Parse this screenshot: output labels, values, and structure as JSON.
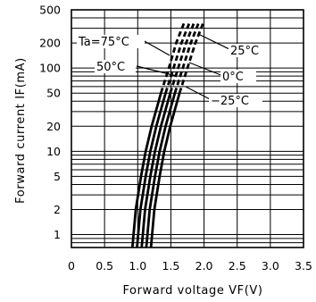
{
  "chart_data": {
    "type": "line",
    "xlabel": "Forward voltage VF(V)",
    "ylabel": "Forward current IF(mA)",
    "xlim": [
      0,
      3.5
    ],
    "ylim": [
      0.7,
      500
    ],
    "y_scale": "log",
    "grid": true,
    "x_ticks": [
      "0",
      "0.5",
      "1.0",
      "1.5",
      "2.0",
      "2.5",
      "3.0",
      "3.5"
    ],
    "y_ticks": [
      "1",
      "2",
      "5",
      "10",
      "20",
      "50",
      "100",
      "200",
      "500"
    ],
    "y_tick_values": [
      1,
      2,
      5,
      10,
      20,
      50,
      100,
      200,
      500
    ],
    "series": [
      {
        "name": "Ta=75°C",
        "style": "solid+dashed",
        "points": [
          [
            0.92,
            0.7
          ],
          [
            0.97,
            2
          ],
          [
            1.05,
            5
          ],
          [
            1.12,
            10
          ],
          [
            1.21,
            20
          ],
          [
            1.35,
            50
          ],
          [
            1.47,
            100
          ],
          [
            1.58,
            200
          ],
          [
            1.7,
            350
          ]
        ]
      },
      {
        "name": "50°C",
        "style": "solid+dashed",
        "points": [
          [
            0.99,
            0.7
          ],
          [
            1.04,
            2
          ],
          [
            1.12,
            5
          ],
          [
            1.19,
            10
          ],
          [
            1.28,
            20
          ],
          [
            1.42,
            50
          ],
          [
            1.54,
            100
          ],
          [
            1.66,
            200
          ],
          [
            1.78,
            350
          ]
        ]
      },
      {
        "name": "25°C",
        "style": "solid+dashed",
        "points": [
          [
            1.06,
            0.7
          ],
          [
            1.11,
            2
          ],
          [
            1.19,
            5
          ],
          [
            1.26,
            10
          ],
          [
            1.35,
            20
          ],
          [
            1.49,
            50
          ],
          [
            1.61,
            100
          ],
          [
            1.73,
            200
          ],
          [
            1.85,
            350
          ]
        ]
      },
      {
        "name": "0°C",
        "style": "solid+dashed",
        "points": [
          [
            1.13,
            0.7
          ],
          [
            1.18,
            2
          ],
          [
            1.26,
            5
          ],
          [
            1.33,
            10
          ],
          [
            1.42,
            20
          ],
          [
            1.56,
            50
          ],
          [
            1.68,
            100
          ],
          [
            1.8,
            200
          ],
          [
            1.92,
            350
          ]
        ]
      },
      {
        "name": "−25°C",
        "style": "solid+dashed",
        "points": [
          [
            1.2,
            0.7
          ],
          [
            1.25,
            2
          ],
          [
            1.33,
            5
          ],
          [
            1.4,
            10
          ],
          [
            1.49,
            20
          ],
          [
            1.63,
            50
          ],
          [
            1.75,
            100
          ],
          [
            1.87,
            200
          ],
          [
            1.99,
            350
          ]
        ]
      }
    ],
    "dashed_above_mA": 50
  }
}
